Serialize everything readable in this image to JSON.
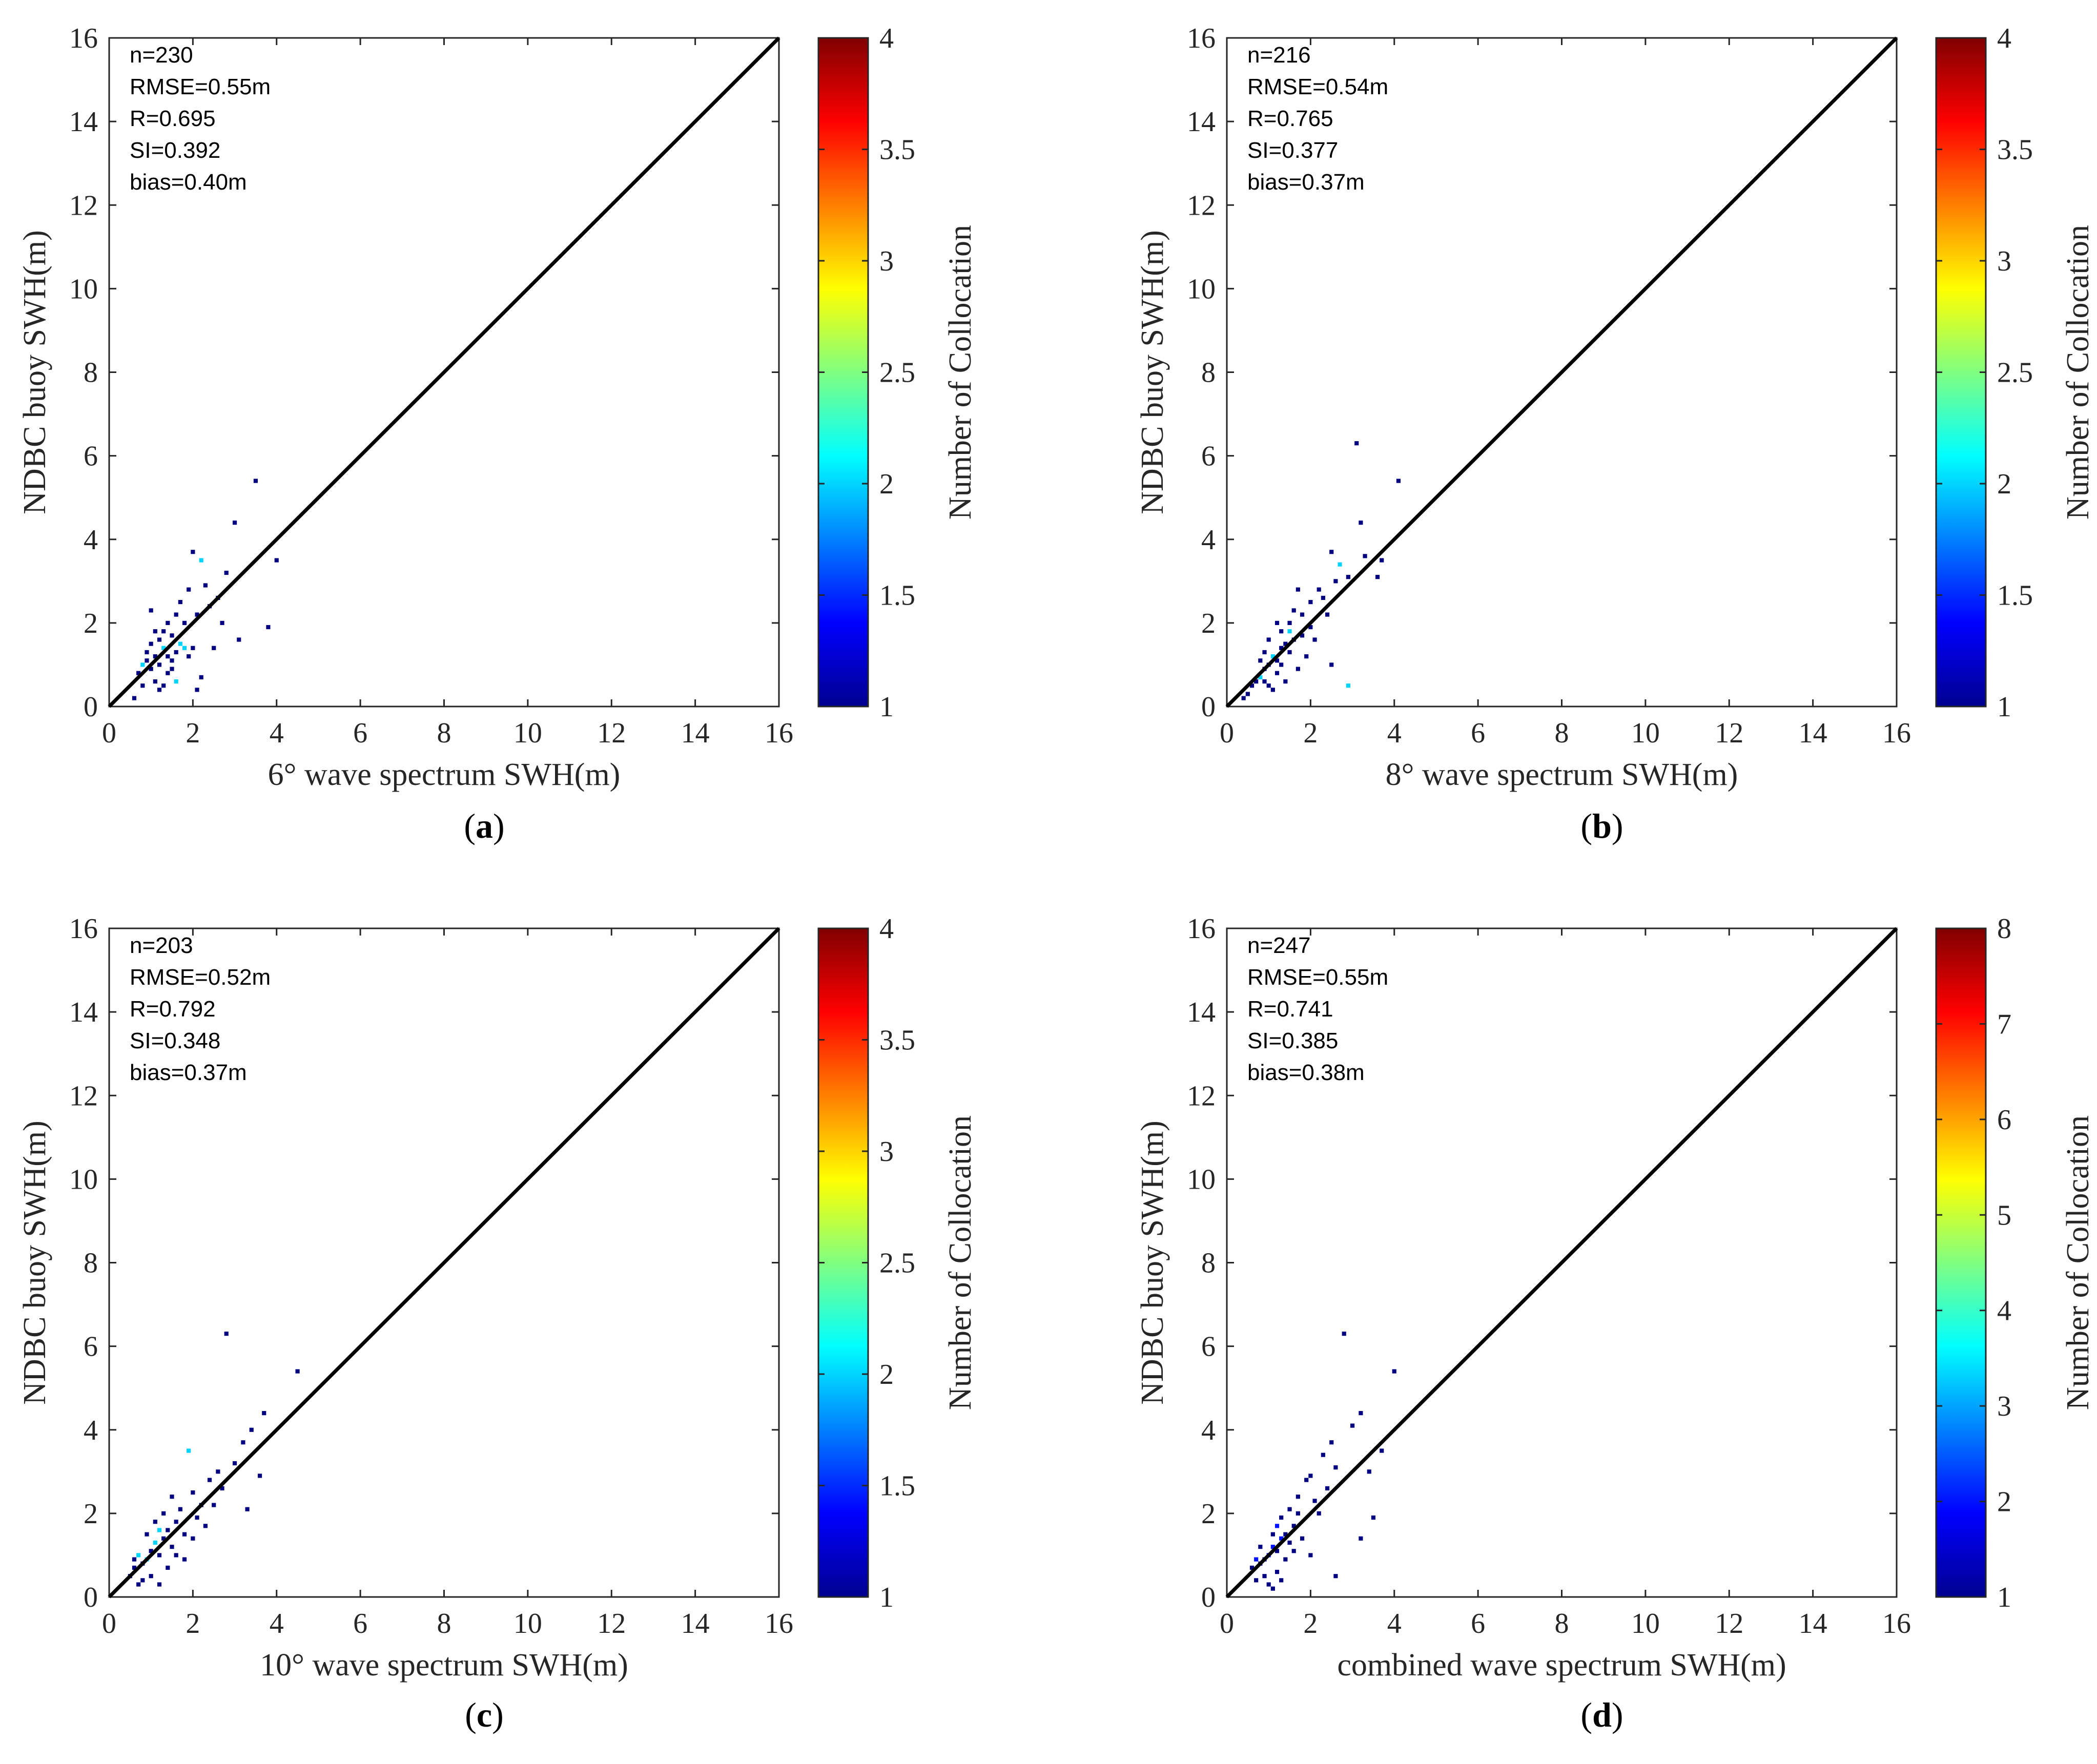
{
  "figure": {
    "panels": [
      "a",
      "b",
      "c",
      "d"
    ]
  },
  "chart_data": [
    {
      "type": "heatmap",
      "panel_label": "a",
      "xlabel": "6° wave spectrum SWH(m)",
      "ylabel": "NDBC buoy SWH(m)",
      "xlim": [
        0,
        16
      ],
      "ylim": [
        0,
        16
      ],
      "xticks": [
        "0",
        "2",
        "4",
        "6",
        "8",
        "10",
        "12",
        "14",
        "16"
      ],
      "yticks": [
        "0",
        "2",
        "4",
        "6",
        "8",
        "10",
        "12",
        "14",
        "16"
      ],
      "reference_line": "1:1",
      "stats": [
        "n=230",
        "RMSE=0.55m",
        "R=0.695",
        "SI=0.392",
        "bias=0.40m"
      ],
      "colorbar": {
        "label": "Number of Collocation",
        "range": [
          1,
          4
        ],
        "ticks": [
          "1",
          "1.5",
          "2",
          "2.5",
          "3",
          "3.5",
          "4"
        ],
        "colormap": "jet"
      },
      "points": [
        [
          1.1,
          1.2,
          1
        ],
        [
          1.2,
          1.0,
          1
        ],
        [
          1.3,
          1.4,
          2
        ],
        [
          1.4,
          1.2,
          1
        ],
        [
          1.0,
          0.9,
          1
        ],
        [
          0.9,
          1.1,
          1
        ],
        [
          1.2,
          0.4,
          1
        ],
        [
          1.1,
          0.6,
          1
        ],
        [
          1.5,
          1.7,
          1
        ],
        [
          1.6,
          1.3,
          1
        ],
        [
          1.7,
          1.5,
          2
        ],
        [
          1.8,
          1.4,
          2
        ],
        [
          2.0,
          1.4,
          1
        ],
        [
          1.3,
          1.8,
          1
        ],
        [
          1.4,
          2.0,
          1
        ],
        [
          1.6,
          2.2,
          1
        ],
        [
          1.7,
          2.5,
          1
        ],
        [
          1.9,
          2.8,
          1
        ],
        [
          2.1,
          2.2,
          1
        ],
        [
          2.2,
          3.5,
          2
        ],
        [
          2.0,
          3.7,
          1
        ],
        [
          2.4,
          2.4,
          1
        ],
        [
          2.5,
          1.4,
          1
        ],
        [
          2.7,
          2.0,
          1
        ],
        [
          2.8,
          3.2,
          1
        ],
        [
          3.0,
          4.4,
          1
        ],
        [
          3.5,
          5.4,
          1
        ],
        [
          4.0,
          3.5,
          1
        ],
        [
          3.8,
          1.9,
          1
        ],
        [
          3.1,
          1.6,
          1
        ],
        [
          0.8,
          0.5,
          1
        ],
        [
          0.7,
          0.8,
          1
        ],
        [
          1.0,
          1.5,
          1
        ],
        [
          0.9,
          1.3,
          1
        ],
        [
          1.5,
          0.9,
          1
        ],
        [
          1.6,
          0.6,
          2
        ],
        [
          1.2,
          1.6,
          1
        ],
        [
          1.4,
          0.8,
          1
        ],
        [
          2.2,
          0.7,
          1
        ],
        [
          2.1,
          0.4,
          1
        ],
        [
          1.8,
          2.0,
          1
        ],
        [
          1.1,
          1.8,
          1
        ],
        [
          0.6,
          0.2,
          1
        ],
        [
          1.3,
          0.5,
          1
        ],
        [
          2.6,
          2.6,
          1
        ],
        [
          1.9,
          1.2,
          1
        ],
        [
          1.0,
          2.3,
          1
        ],
        [
          2.3,
          2.9,
          1
        ],
        [
          1.5,
          1.1,
          1
        ],
        [
          0.8,
          1.0,
          2
        ]
      ]
    },
    {
      "type": "heatmap",
      "panel_label": "b",
      "xlabel": "8° wave spectrum SWH(m)",
      "ylabel": "NDBC buoy SWH(m)",
      "xlim": [
        0,
        16
      ],
      "ylim": [
        0,
        16
      ],
      "xticks": [
        "0",
        "2",
        "4",
        "6",
        "8",
        "10",
        "12",
        "14",
        "16"
      ],
      "yticks": [
        "0",
        "2",
        "4",
        "6",
        "8",
        "10",
        "12",
        "14",
        "16"
      ],
      "reference_line": "1:1",
      "stats": [
        "n=216",
        "RMSE=0.54m",
        "R=0.765",
        "SI=0.377",
        "bias=0.37m"
      ],
      "colorbar": {
        "label": "Number of Collocation",
        "range": [
          1,
          4
        ],
        "ticks": [
          "1",
          "1.5",
          "2",
          "2.5",
          "3",
          "3.5",
          "4"
        ],
        "colormap": "jet"
      },
      "points": [
        [
          1.0,
          1.0,
          1
        ],
        [
          1.1,
          1.2,
          2
        ],
        [
          1.2,
          1.1,
          1
        ],
        [
          1.3,
          1.4,
          1
        ],
        [
          0.9,
          0.9,
          1
        ],
        [
          0.8,
          0.7,
          2
        ],
        [
          0.7,
          0.6,
          1
        ],
        [
          1.4,
          1.5,
          1
        ],
        [
          1.5,
          1.3,
          1
        ],
        [
          1.6,
          1.6,
          1
        ],
        [
          1.2,
          0.8,
          1
        ],
        [
          1.3,
          1.8,
          1
        ],
        [
          1.5,
          2.0,
          1
        ],
        [
          1.8,
          2.2,
          1
        ],
        [
          2.0,
          2.5,
          1
        ],
        [
          2.2,
          2.8,
          1
        ],
        [
          2.5,
          3.7,
          1
        ],
        [
          2.7,
          3.4,
          2
        ],
        [
          2.9,
          3.1,
          1
        ],
        [
          3.1,
          6.3,
          1
        ],
        [
          4.1,
          5.4,
          1
        ],
        [
          3.2,
          4.4,
          1
        ],
        [
          3.3,
          3.6,
          1
        ],
        [
          3.6,
          3.1,
          1
        ],
        [
          3.7,
          3.5,
          1
        ],
        [
          2.9,
          0.5,
          2
        ],
        [
          2.5,
          1.0,
          1
        ],
        [
          2.1,
          1.6,
          1
        ],
        [
          1.9,
          1.2,
          1
        ],
        [
          1.7,
          0.9,
          1
        ],
        [
          0.5,
          0.3,
          1
        ],
        [
          0.6,
          0.5,
          1
        ],
        [
          1.0,
          1.6,
          1
        ],
        [
          0.9,
          1.3,
          1
        ],
        [
          1.4,
          0.6,
          1
        ],
        [
          1.1,
          0.4,
          1
        ],
        [
          2.4,
          2.2,
          1
        ],
        [
          2.0,
          1.9,
          1
        ],
        [
          1.6,
          2.3,
          1
        ],
        [
          1.2,
          2.0,
          1
        ],
        [
          0.8,
          1.1,
          1
        ],
        [
          1.8,
          1.7,
          1
        ],
        [
          2.3,
          2.6,
          1
        ],
        [
          1.3,
          1.0,
          1
        ],
        [
          1.0,
          0.5,
          1
        ],
        [
          0.4,
          0.2,
          1
        ],
        [
          2.6,
          3.0,
          1
        ],
        [
          1.5,
          1.8,
          2
        ],
        [
          0.9,
          0.6,
          1
        ],
        [
          1.7,
          2.8,
          1
        ]
      ]
    },
    {
      "type": "heatmap",
      "panel_label": "c",
      "xlabel": "10° wave spectrum SWH(m)",
      "ylabel": "NDBC buoy SWH(m)",
      "xlim": [
        0,
        16
      ],
      "ylim": [
        0,
        16
      ],
      "xticks": [
        "0",
        "2",
        "4",
        "6",
        "8",
        "10",
        "12",
        "14",
        "16"
      ],
      "yticks": [
        "0",
        "2",
        "4",
        "6",
        "8",
        "10",
        "12",
        "14",
        "16"
      ],
      "reference_line": "1:1",
      "stats": [
        "n=203",
        "RMSE=0.52m",
        "R=0.792",
        "SI=0.348",
        "bias=0.37m"
      ],
      "colorbar": {
        "label": "Number of Collocation",
        "range": [
          1,
          4
        ],
        "ticks": [
          "1",
          "1.5",
          "2",
          "2.5",
          "3",
          "3.5",
          "4"
        ],
        "colormap": "jet"
      },
      "points": [
        [
          1.0,
          1.1,
          1
        ],
        [
          1.1,
          1.3,
          2
        ],
        [
          1.2,
          1.0,
          1
        ],
        [
          1.3,
          1.4,
          1
        ],
        [
          0.9,
          0.9,
          2
        ],
        [
          0.8,
          0.8,
          1
        ],
        [
          0.7,
          1.0,
          2
        ],
        [
          0.6,
          0.7,
          1
        ],
        [
          1.4,
          1.6,
          1
        ],
        [
          1.5,
          1.2,
          1
        ],
        [
          1.6,
          1.8,
          1
        ],
        [
          1.7,
          2.1,
          1
        ],
        [
          1.9,
          3.5,
          2
        ],
        [
          2.0,
          2.5,
          1
        ],
        [
          2.2,
          2.2,
          1
        ],
        [
          2.4,
          2.8,
          1
        ],
        [
          2.6,
          3.0,
          1
        ],
        [
          2.8,
          6.3,
          1
        ],
        [
          3.0,
          3.2,
          1
        ],
        [
          3.2,
          3.7,
          1
        ],
        [
          3.4,
          4.0,
          1
        ],
        [
          3.7,
          4.4,
          1
        ],
        [
          4.5,
          5.4,
          1
        ],
        [
          3.6,
          2.9,
          1
        ],
        [
          3.3,
          2.1,
          1
        ],
        [
          1.2,
          0.3,
          1
        ],
        [
          1.0,
          0.5,
          1
        ],
        [
          0.8,
          0.4,
          1
        ],
        [
          1.8,
          0.9,
          1
        ],
        [
          2.0,
          1.4,
          1
        ],
        [
          1.4,
          0.7,
          1
        ],
        [
          0.5,
          0.5,
          1
        ],
        [
          1.1,
          1.8,
          1
        ],
        [
          1.3,
          2.0,
          1
        ],
        [
          2.3,
          1.7,
          1
        ],
        [
          2.5,
          2.2,
          1
        ],
        [
          1.6,
          1.0,
          1
        ],
        [
          0.9,
          1.5,
          1
        ],
        [
          1.5,
          2.4,
          1
        ],
        [
          2.1,
          1.9,
          1
        ],
        [
          0.7,
          0.3,
          1
        ],
        [
          1.8,
          1.5,
          1
        ],
        [
          2.7,
          2.6,
          1
        ],
        [
          1.2,
          1.6,
          2
        ],
        [
          0.6,
          0.9,
          1
        ]
      ]
    },
    {
      "type": "heatmap",
      "panel_label": "d",
      "xlabel": "combined wave spectrum SWH(m)",
      "ylabel": "NDBC buoy SWH(m)",
      "xlim": [
        0,
        16
      ],
      "ylim": [
        0,
        16
      ],
      "xticks": [
        "0",
        "2",
        "4",
        "6",
        "8",
        "10",
        "12",
        "14",
        "16"
      ],
      "yticks": [
        "0",
        "2",
        "4",
        "6",
        "8",
        "10",
        "12",
        "14",
        "16"
      ],
      "reference_line": "1:1",
      "stats": [
        "n=247",
        "RMSE=0.55m",
        "R=0.741",
        "SI=0.385",
        "bias=0.38m"
      ],
      "colorbar": {
        "label": "Number of Collocation",
        "range": [
          1,
          8
        ],
        "ticks": [
          "1",
          "2",
          "3",
          "4",
          "5",
          "6",
          "7",
          "8"
        ],
        "colormap": "jet"
      },
      "points": [
        [
          1.0,
          1.0,
          2
        ],
        [
          1.1,
          1.2,
          2
        ],
        [
          1.2,
          1.1,
          1
        ],
        [
          1.3,
          1.4,
          2
        ],
        [
          0.9,
          0.9,
          1
        ],
        [
          0.8,
          0.8,
          1
        ],
        [
          0.7,
          0.9,
          2
        ],
        [
          1.4,
          1.5,
          1
        ],
        [
          1.5,
          1.3,
          1
        ],
        [
          1.6,
          1.7,
          1
        ],
        [
          1.2,
          0.6,
          1
        ],
        [
          1.3,
          1.9,
          1
        ],
        [
          1.5,
          2.1,
          1
        ],
        [
          1.7,
          2.4,
          1
        ],
        [
          1.9,
          2.8,
          1
        ],
        [
          2.1,
          2.3,
          1
        ],
        [
          2.3,
          3.4,
          1
        ],
        [
          2.5,
          3.7,
          1
        ],
        [
          2.8,
          6.3,
          1
        ],
        [
          3.0,
          4.1,
          1
        ],
        [
          3.2,
          4.4,
          1
        ],
        [
          4.0,
          5.4,
          1
        ],
        [
          3.7,
          3.5,
          1
        ],
        [
          3.4,
          3.0,
          1
        ],
        [
          3.5,
          1.9,
          1
        ],
        [
          3.2,
          1.4,
          1
        ],
        [
          2.6,
          0.5,
          1
        ],
        [
          2.0,
          1.0,
          1
        ],
        [
          1.8,
          1.4,
          1
        ],
        [
          0.9,
          0.5,
          1
        ],
        [
          1.0,
          0.3,
          1
        ],
        [
          1.1,
          0.2,
          1
        ],
        [
          0.6,
          0.7,
          1
        ],
        [
          1.2,
          1.7,
          2
        ],
        [
          1.4,
          0.9,
          1
        ],
        [
          1.6,
          1.1,
          1
        ],
        [
          2.2,
          2.0,
          1
        ],
        [
          2.4,
          2.6,
          1
        ],
        [
          1.1,
          1.5,
          1
        ],
        [
          0.8,
          1.2,
          1
        ],
        [
          1.3,
          0.4,
          1
        ],
        [
          1.7,
          2.0,
          1
        ],
        [
          2.0,
          2.9,
          1
        ],
        [
          2.6,
          3.1,
          1
        ],
        [
          0.7,
          0.4,
          1
        ]
      ]
    }
  ]
}
